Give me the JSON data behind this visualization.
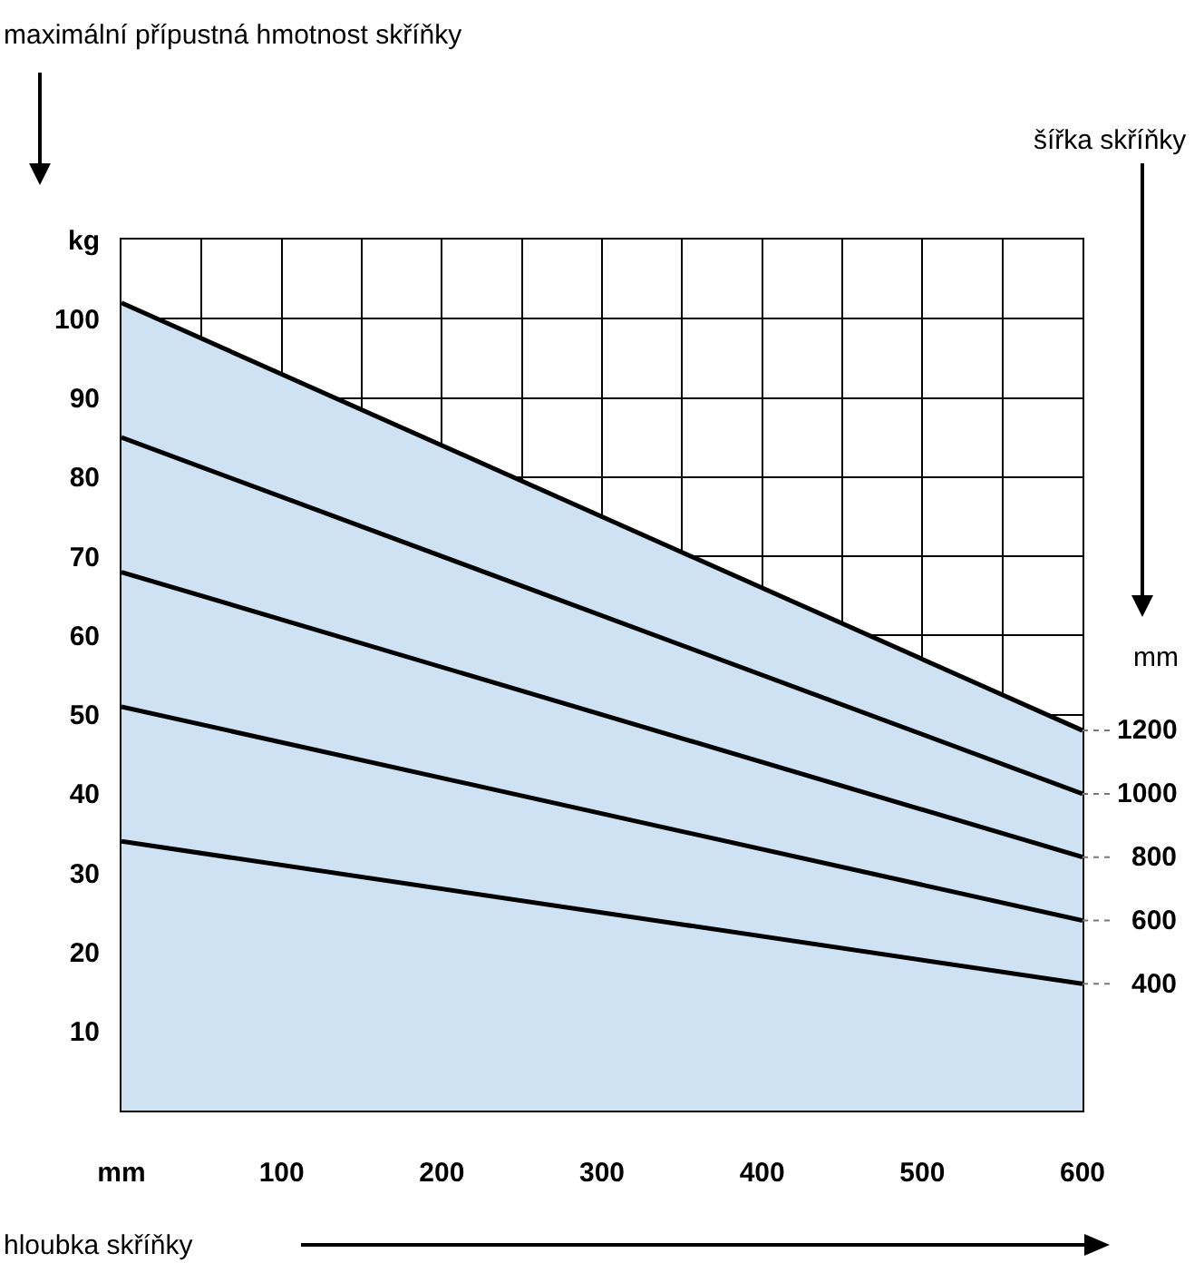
{
  "chart_data": {
    "type": "line",
    "xlabel": "hloubka skříňky",
    "legend_title": "šířka skříňky",
    "annotations": [
      "mm",
      "maximální přípustná hmotnost skříňky"
    ],
    "x": [
      0,
      600
    ],
    "xlim": [
      0,
      600
    ],
    "ylim": [
      0,
      110
    ],
    "xticks": [
      {
        "value": 0,
        "label": "mm"
      },
      {
        "value": 50,
        "label": null
      },
      100,
      {
        "value": 150,
        "label": null
      },
      200,
      {
        "value": 250,
        "label": null
      },
      300,
      {
        "value": 350,
        "label": null
      },
      400,
      {
        "value": 450,
        "label": null
      },
      500,
      {
        "value": 550,
        "label": null
      },
      600
    ],
    "yticks": [
      10,
      20,
      30,
      40,
      50,
      60,
      70,
      80,
      90,
      100,
      {
        "value": 110,
        "label": "kg"
      }
    ],
    "grid": true,
    "legend": false,
    "marker": "none",
    "line_style": "solid",
    "series": [
      {
        "name": "1200",
        "type": "area",
        "color": "#cfe2f3",
        "values": [
          102,
          48
        ]
      },
      {
        "name": "1000",
        "color": "#000000",
        "values": [
          85,
          40
        ]
      },
      {
        "name": "800",
        "color": "#000000",
        "values": [
          68,
          32
        ]
      },
      {
        "name": "600",
        "color": "#000000",
        "values": [
          51,
          24
        ]
      },
      {
        "name": "400",
        "color": "#000000",
        "values": [
          34,
          16
        ]
      }
    ]
  }
}
